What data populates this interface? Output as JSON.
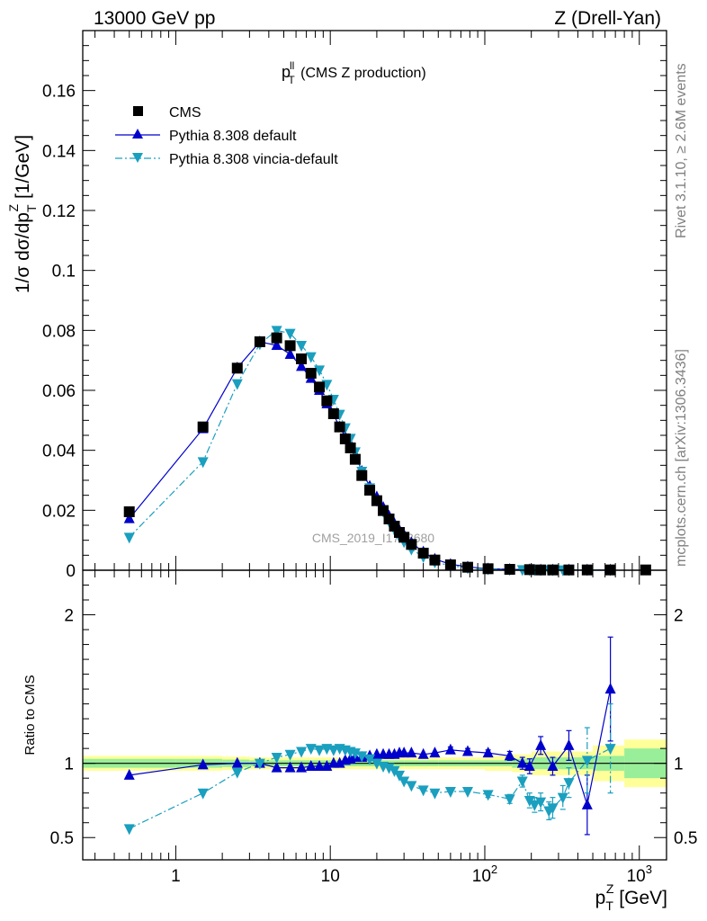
{
  "header": {
    "left": "13000 GeV pp",
    "right": "Z (Drell-Yan)"
  },
  "side_text": {
    "rivet": "Rivet 3.1.10, ≥ 2.6M events",
    "mcplots": "mcplots.cern.ch [arXiv:1306.3436]"
  },
  "watermark": "CMS_2019_I1753680",
  "chart_data": [
    {
      "type": "scatter",
      "title_main": "p",
      "title_sup": "ll",
      "title_sub": "T",
      "title_rest": " (CMS Z production)",
      "ylabel": "1/σ dσ/dp",
      "ylabel_sub": "T",
      "ylabel_sup": "Z",
      "ylabel_unit": " [1/GeV]",
      "x_scale": "log",
      "xlim": [
        0.25,
        1500
      ],
      "ylim": [
        0,
        0.18
      ],
      "yticks": [
        {
          "v": 0,
          "label": "0"
        },
        {
          "v": 0.02,
          "label": "0.02"
        },
        {
          "v": 0.04,
          "label": "0.04"
        },
        {
          "v": 0.06,
          "label": "0.06"
        },
        {
          "v": 0.08,
          "label": "0.08"
        },
        {
          "v": 0.1,
          "label": "0.1"
        },
        {
          "v": 0.12,
          "label": "0.12"
        },
        {
          "v": 0.14,
          "label": "0.14"
        },
        {
          "v": 0.16,
          "label": "0.16"
        }
      ],
      "legend_position": "top-left",
      "legend": [
        "CMS",
        "Pythia 8.308 default",
        "Pythia 8.308 vincia-default"
      ],
      "series": [
        {
          "name": "CMS",
          "color": "#000000",
          "marker": "square",
          "x": [
            0.5,
            1.5,
            2.5,
            3.5,
            4.5,
            5.5,
            6.5,
            7.5,
            8.5,
            9.5,
            10.5,
            11.5,
            12.5,
            13.5,
            14.5,
            16,
            18,
            20,
            22,
            24,
            26,
            28,
            30,
            33.5,
            40,
            47.5,
            60,
            77.5,
            105,
            145,
            195,
            230,
            275,
            350,
            460,
            650,
            1100
          ],
          "values": [
            0.0195,
            0.0478,
            0.0674,
            0.0762,
            0.0775,
            0.0749,
            0.0705,
            0.0657,
            0.0611,
            0.0565,
            0.0522,
            0.0478,
            0.0438,
            0.0408,
            0.037,
            0.0316,
            0.0267,
            0.0232,
            0.0199,
            0.0171,
            0.0147,
            0.0126,
            0.011,
            0.0086,
            0.0057,
            0.0034,
            0.0018,
            0.001,
            0.0005,
            0.0003,
            0.0002,
            0.0001,
            0.0001,
            0.0001,
            0.0001,
            0.0001,
            0.0001
          ]
        },
        {
          "name": "Pythia 8.308 default",
          "color": "#0000cc",
          "marker": "triangle-up",
          "line": "solid",
          "x": [
            0.5,
            1.5,
            2.5,
            3.5,
            4.5,
            5.5,
            6.5,
            7.5,
            8.5,
            9.5,
            10.5,
            11.5,
            12.5,
            13.5,
            14.5,
            16,
            18,
            20,
            22,
            24,
            26,
            28,
            30,
            33.5,
            40,
            47.5,
            60,
            77.5,
            105,
            145,
            195,
            230,
            275,
            350,
            460,
            650
          ],
          "values": [
            0.0172,
            0.0472,
            0.0675,
            0.0762,
            0.075,
            0.072,
            0.068,
            0.064,
            0.06,
            0.0555,
            0.052,
            0.0478,
            0.0445,
            0.042,
            0.0385,
            0.033,
            0.028,
            0.0245,
            0.021,
            0.0181,
            0.0156,
            0.0134,
            0.0118,
            0.0092,
            0.0061,
            0.0037,
            0.002,
            0.0011,
            0.0005,
            0.0003,
            0.0002,
            0.0001,
            0.0001,
            0.0001,
            0.0001,
            0.0001
          ]
        },
        {
          "name": "Pythia 8.308 vincia-default",
          "color": "#1a9fbf",
          "marker": "triangle-down",
          "line": "dashdot",
          "x": [
            0.5,
            1.5,
            2.5,
            3.5,
            4.5,
            5.5,
            6.5,
            7.5,
            8.5,
            9.5,
            10.5,
            11.5,
            12.5,
            13.5,
            14.5,
            16,
            18,
            20,
            22,
            24,
            26,
            28,
            30,
            33.5,
            40,
            47.5,
            60,
            77.5,
            105,
            145,
            175,
            195,
            210,
            230,
            260,
            275,
            320,
            350,
            460,
            650
          ],
          "values": [
            0.011,
            0.0362,
            0.0622,
            0.0755,
            0.08,
            0.079,
            0.075,
            0.0712,
            0.0668,
            0.062,
            0.057,
            0.052,
            0.0475,
            0.044,
            0.0395,
            0.033,
            0.0275,
            0.0232,
            0.0196,
            0.0163,
            0.0136,
            0.0112,
            0.0095,
            0.007,
            0.0045,
            0.0027,
            0.0015,
            0.0008,
            0.0004,
            0.0002,
            0.0002,
            0.0001,
            0.0001,
            0.0001,
            0.0001,
            0.0001,
            0.0001,
            0.0001,
            0.0001,
            0.0001
          ]
        }
      ]
    },
    {
      "type": "scatter",
      "ylabel": "Ratio to CMS",
      "xlabel": "p",
      "xlabel_sub": "T",
      "xlabel_sup": "Z",
      "xlabel_unit": " [GeV]",
      "x_scale": "log",
      "xlim": [
        0.25,
        1500
      ],
      "ylim": [
        0.35,
        2.3
      ],
      "yticks": [
        {
          "v": 0.5,
          "label": "0.5"
        },
        {
          "v": 1,
          "label": "1"
        },
        {
          "v": 2,
          "label": "2"
        }
      ],
      "xticks": [
        {
          "v": 1,
          "label": "1"
        },
        {
          "v": 10,
          "label": "10"
        },
        {
          "v": 100,
          "label": "10",
          "exp": "2"
        },
        {
          "v": 1000,
          "label": "10",
          "exp": "3"
        }
      ],
      "uncertainty_bands": {
        "edges": [
          0.25,
          1,
          2,
          3,
          5,
          7,
          10,
          15,
          20,
          30,
          50,
          100,
          150,
          200,
          300,
          500,
          800,
          1500
        ],
        "green": [
          0.03,
          0.03,
          0.025,
          0.02,
          0.02,
          0.02,
          0.02,
          0.02,
          0.02,
          0.02,
          0.02,
          0.02,
          0.03,
          0.04,
          0.04,
          0.05,
          0.1
        ],
        "yellow": [
          0.05,
          0.05,
          0.045,
          0.04,
          0.04,
          0.04,
          0.04,
          0.04,
          0.04,
          0.04,
          0.04,
          0.05,
          0.06,
          0.08,
          0.08,
          0.12,
          0.16
        ],
        "green_color": "#99ee99",
        "yellow_color": "#ffff99"
      },
      "series": [
        {
          "name": "Pythia 8.308 default",
          "color": "#0000cc",
          "marker": "triangle-up",
          "line": "solid",
          "x": [
            0.5,
            1.5,
            2.5,
            3.5,
            4.5,
            5.5,
            6.5,
            7.5,
            8.5,
            9.5,
            10.5,
            11.5,
            12.5,
            13.5,
            14.5,
            16,
            18,
            20,
            22,
            24,
            26,
            28,
            30,
            33.5,
            40,
            47.5,
            60,
            77.5,
            105,
            145,
            175,
            195,
            230,
            275,
            350,
            460,
            650
          ],
          "values": [
            0.92,
            0.99,
            1.0,
            1.0,
            0.97,
            0.97,
            0.97,
            0.98,
            0.98,
            0.98,
            1.0,
            1.0,
            1.02,
            1.03,
            1.04,
            1.04,
            1.05,
            1.06,
            1.06,
            1.06,
            1.06,
            1.07,
            1.07,
            1.07,
            1.06,
            1.07,
            1.09,
            1.08,
            1.07,
            1.05,
            1.0,
            0.98,
            1.12,
            0.98,
            1.12,
            0.72,
            1.5
          ],
          "errors": [
            0.01,
            0.01,
            0.01,
            0.01,
            0.01,
            0.01,
            0.01,
            0.01,
            0.01,
            0.01,
            0.01,
            0.01,
            0.01,
            0.01,
            0.01,
            0.01,
            0.01,
            0.01,
            0.01,
            0.01,
            0.01,
            0.01,
            0.01,
            0.01,
            0.01,
            0.01,
            0.02,
            0.02,
            0.02,
            0.03,
            0.04,
            0.05,
            0.06,
            0.06,
            0.1,
            0.2,
            0.35
          ]
        },
        {
          "name": "Pythia 8.308 vincia-default",
          "color": "#1a9fbf",
          "marker": "triangle-down",
          "line": "dashdot",
          "x": [
            0.5,
            1.5,
            2.5,
            3.5,
            4.5,
            5.5,
            6.5,
            7.5,
            8.5,
            9.5,
            10.5,
            11.5,
            12.5,
            13.5,
            14.5,
            16,
            18,
            20,
            22,
            24,
            26,
            28,
            30,
            33.5,
            40,
            47.5,
            60,
            77.5,
            105,
            145,
            175,
            195,
            210,
            230,
            260,
            275,
            320,
            350,
            460,
            650
          ],
          "values": [
            0.56,
            0.8,
            0.94,
            1.0,
            1.04,
            1.06,
            1.08,
            1.1,
            1.09,
            1.1,
            1.09,
            1.1,
            1.09,
            1.08,
            1.07,
            1.05,
            1.03,
            1.0,
            0.98,
            0.97,
            0.95,
            0.92,
            0.88,
            0.85,
            0.82,
            0.8,
            0.81,
            0.81,
            0.79,
            0.76,
            0.88,
            0.75,
            0.72,
            0.74,
            0.68,
            0.7,
            0.77,
            0.87,
            1.02,
            1.1
          ],
          "errors": [
            0.005,
            0.005,
            0.005,
            0.005,
            0.005,
            0.005,
            0.005,
            0.005,
            0.005,
            0.005,
            0.005,
            0.005,
            0.005,
            0.005,
            0.005,
            0.005,
            0.005,
            0.005,
            0.005,
            0.005,
            0.005,
            0.005,
            0.005,
            0.005,
            0.01,
            0.01,
            0.01,
            0.01,
            0.02,
            0.03,
            0.04,
            0.05,
            0.05,
            0.06,
            0.06,
            0.07,
            0.08,
            0.1,
            0.22,
            0.3
          ]
        }
      ]
    }
  ]
}
